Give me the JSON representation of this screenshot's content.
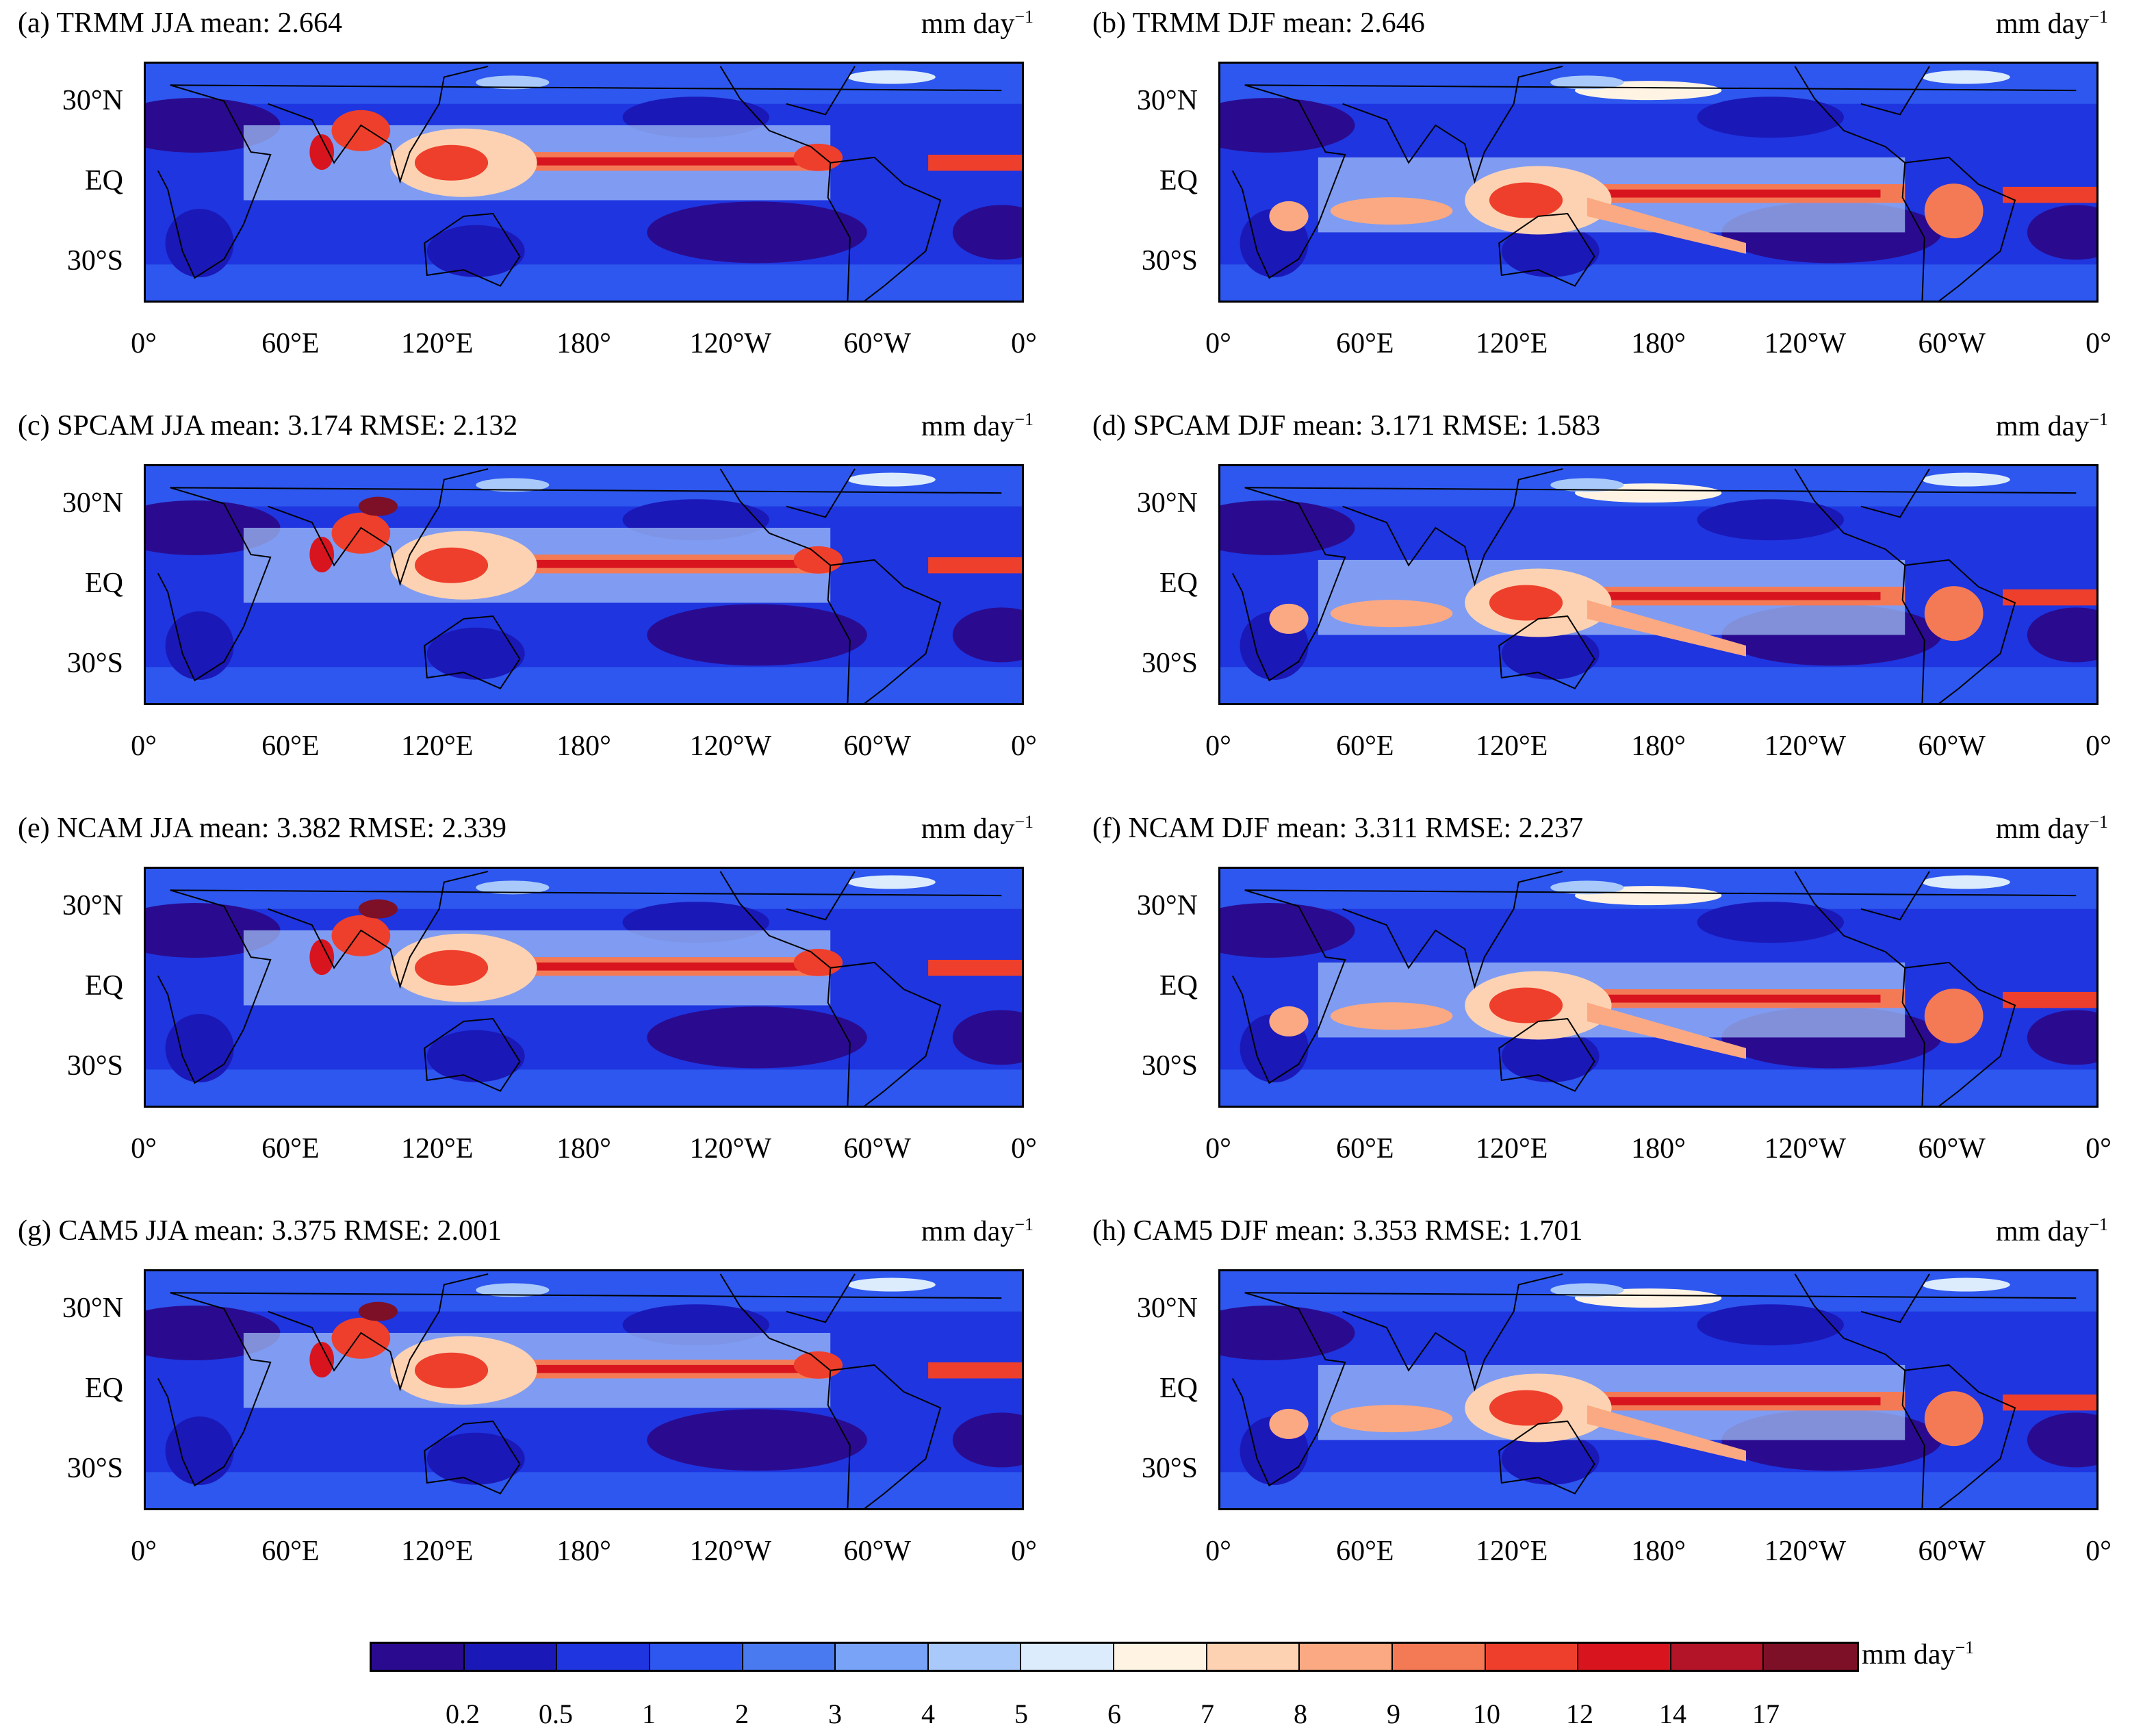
{
  "panels": [
    {
      "title": "(a) TRMM JJA mean: 2.664",
      "unit": "mm day",
      "unit_sup": "−1",
      "season": "JJA"
    },
    {
      "title": "(b) TRMM DJF mean: 2.646",
      "unit": "mm day",
      "unit_sup": "−1",
      "season": "DJF"
    },
    {
      "title": "(c) SPCAM JJA mean: 3.174 RMSE: 2.132",
      "unit": "mm day",
      "unit_sup": "−1",
      "season": "JJA"
    },
    {
      "title": "(d) SPCAM DJF mean: 3.171 RMSE: 1.583",
      "unit": "mm day",
      "unit_sup": "−1",
      "season": "DJF"
    },
    {
      "title": "(e) NCAM JJA mean: 3.382 RMSE: 2.339",
      "unit": "mm day",
      "unit_sup": "−1",
      "season": "JJA"
    },
    {
      "title": "(f) NCAM DJF mean: 3.311 RMSE: 2.237",
      "unit": "mm day",
      "unit_sup": "−1",
      "season": "DJF"
    },
    {
      "title": "(g) CAM5 JJA mean: 3.375 RMSE: 2.001",
      "unit": "mm day",
      "unit_sup": "−1",
      "season": "JJA"
    },
    {
      "title": "(h) CAM5 DJF mean: 3.353 RMSE: 1.701",
      "unit": "mm day",
      "unit_sup": "−1",
      "season": "DJF"
    }
  ],
  "axes": {
    "x_ticks": [
      "0°",
      "60°E",
      "120°E",
      "180°",
      "120°W",
      "60°W",
      "0°"
    ],
    "y_ticks": [
      "30°N",
      "EQ",
      "30°S"
    ]
  },
  "colorbar": {
    "unit": "mm day",
    "unit_sup": "−1",
    "tick_labels": [
      "0.2",
      "0.5",
      "1",
      "2",
      "3",
      "4",
      "5",
      "6",
      "7",
      "8",
      "9",
      "10",
      "12",
      "14",
      "17"
    ],
    "colors": [
      "#2a0b8f",
      "#1b18b8",
      "#1e35e0",
      "#2d57ee",
      "#4a7af0",
      "#78a3f6",
      "#a8c9fa",
      "#dcecfd",
      "#fff4e4",
      "#fdd2b2",
      "#fba982",
      "#f47a56",
      "#ee3f2c",
      "#d8151e",
      "#b31428",
      "#7d1026"
    ]
  }
}
